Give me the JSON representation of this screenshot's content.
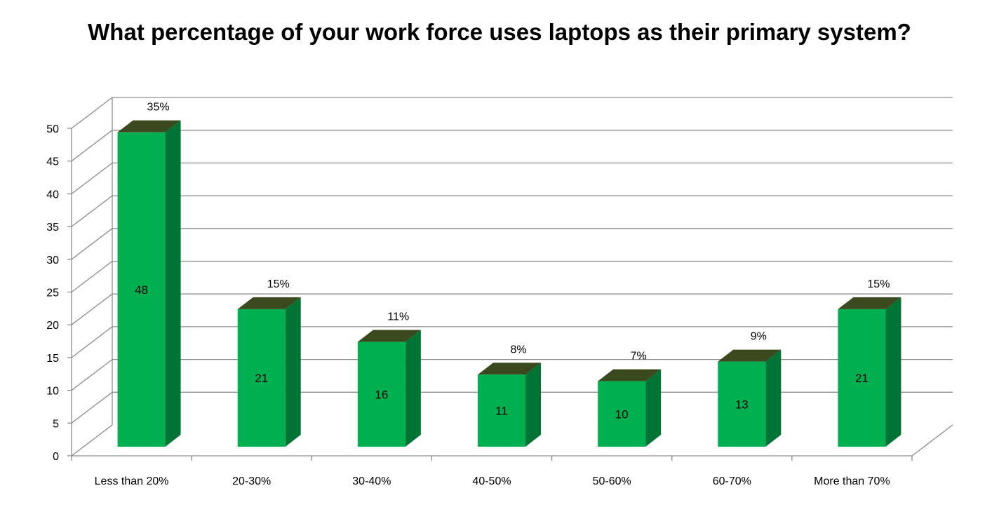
{
  "chart_data": {
    "type": "bar",
    "title": "What percentage of your work force uses laptops as their primary system?",
    "xlabel": "",
    "ylabel": "",
    "ylim": [
      0,
      50
    ],
    "yticks": [
      0,
      5,
      10,
      15,
      20,
      25,
      30,
      35,
      40,
      45,
      50
    ],
    "grid": true,
    "legend": "none",
    "three_d": true,
    "categories": [
      "Less than 20%",
      "20-30%",
      "30-40%",
      "40-50%",
      "50-60%",
      "60-70%",
      "More than 70%"
    ],
    "values": [
      48,
      21,
      16,
      11,
      10,
      13,
      21
    ],
    "percent_labels": [
      "35%",
      "15%",
      "11%",
      "8%",
      "7%",
      "9%",
      "15%"
    ],
    "colors": {
      "bar_front": "#00b050",
      "bar_side": "#007434",
      "bar_top": "#3b4a1e",
      "grid": "#8c8c8c"
    }
  }
}
